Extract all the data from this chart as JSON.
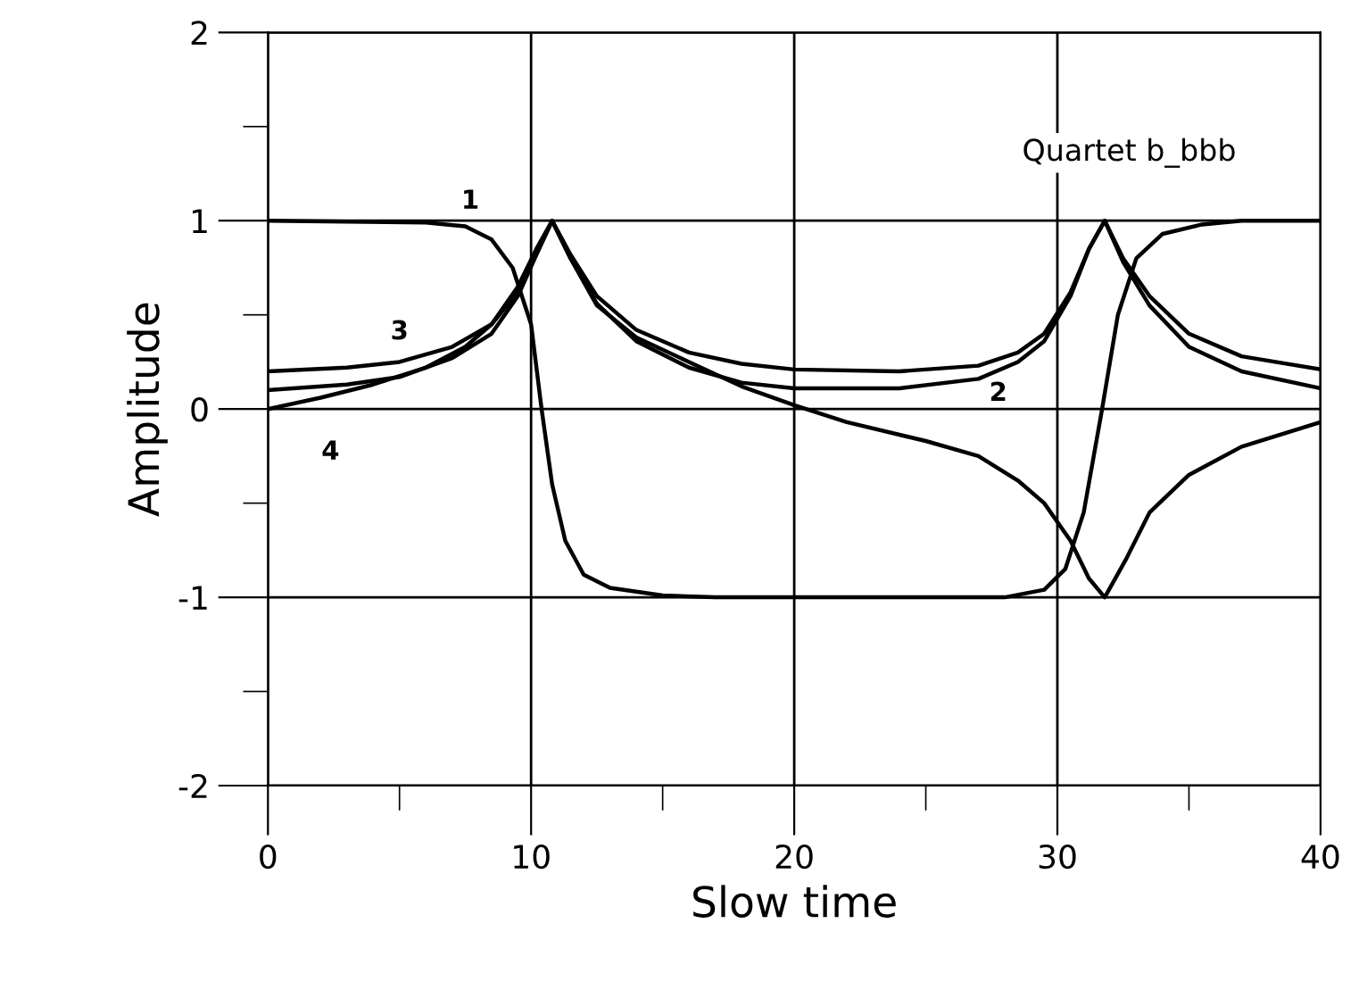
{
  "chart_data": {
    "type": "line",
    "xlabel": "Slow time",
    "ylabel": "Amplitude",
    "xlim": [
      0,
      40
    ],
    "ylim": [
      -2,
      2
    ],
    "xticks": [
      0,
      {
        "value": 5,
        "label": null
      },
      10,
      {
        "value": 15,
        "label": null
      },
      20,
      {
        "value": 25,
        "label": null
      },
      30,
      {
        "value": 35,
        "label": null
      },
      40
    ],
    "yticks": [
      -2,
      {
        "value": -1.5,
        "label": null
      },
      -1,
      {
        "value": -0.5,
        "label": null
      },
      0,
      {
        "value": 0.5,
        "label": null
      },
      1,
      {
        "value": 1.5,
        "label": null
      },
      2
    ],
    "grid": true,
    "legend": false,
    "marker": "none",
    "line_style": "solid",
    "annotations": [
      "Quartet b_bbb"
    ],
    "series": [
      {
        "name": "1",
        "color": "#000000",
        "x": [
          0,
          6,
          7.5,
          8.5,
          9.3,
          10,
          10.4,
          10.8,
          11.3,
          12,
          13,
          15,
          17,
          28,
          29.5,
          30.3,
          31,
          31.7,
          32.3,
          33,
          34,
          35.5,
          37,
          40
        ],
        "values": [
          1,
          0.99,
          0.97,
          0.9,
          0.75,
          0.45,
          0,
          -0.4,
          -0.7,
          -0.88,
          -0.95,
          -0.99,
          -1,
          -1,
          -0.96,
          -0.85,
          -0.55,
          0,
          0.5,
          0.8,
          0.93,
          0.98,
          1,
          1
        ]
      },
      {
        "name": "2",
        "color": "#000000",
        "x": [
          0,
          3,
          5,
          7,
          8.5,
          9.5,
          10.3,
          10.8,
          11.5,
          12.5,
          14,
          16,
          18,
          20,
          24,
          27,
          28.5,
          29.5,
          30.5,
          31.2,
          31.8,
          32.5,
          33.5,
          35,
          37,
          40
        ],
        "values": [
          0.1,
          0.13,
          0.17,
          0.27,
          0.4,
          0.6,
          0.85,
          1,
          0.8,
          0.56,
          0.36,
          0.22,
          0.14,
          0.11,
          0.11,
          0.16,
          0.25,
          0.36,
          0.6,
          0.85,
          1,
          0.78,
          0.55,
          0.33,
          0.2,
          0.11
        ]
      },
      {
        "name": "3",
        "color": "#000000",
        "x": [
          0,
          3,
          5,
          7,
          8.5,
          9.5,
          10.3,
          10.8,
          11.5,
          12.5,
          14,
          16,
          18,
          20,
          24,
          27,
          28.5,
          29.5,
          30.5,
          31.2,
          31.8,
          32.5,
          33.5,
          35,
          37,
          40
        ],
        "values": [
          0.2,
          0.22,
          0.25,
          0.33,
          0.45,
          0.62,
          0.85,
          1,
          0.82,
          0.6,
          0.42,
          0.3,
          0.24,
          0.21,
          0.2,
          0.23,
          0.3,
          0.4,
          0.62,
          0.85,
          1,
          0.8,
          0.6,
          0.4,
          0.28,
          0.21
        ]
      },
      {
        "name": "4",
        "color": "#000000",
        "x": [
          0,
          2,
          4,
          6,
          7.5,
          8.5,
          9.5,
          10.2,
          10.8,
          11.5,
          12.5,
          14,
          16,
          18,
          20,
          22,
          25,
          27,
          28.5,
          29.5,
          30.5,
          31.2,
          31.8,
          32.6,
          33.5,
          35,
          37,
          40
        ],
        "values": [
          0,
          0.06,
          0.13,
          0.22,
          0.33,
          0.45,
          0.65,
          0.85,
          1,
          0.8,
          0.55,
          0.38,
          0.25,
          0.12,
          0.02,
          -0.07,
          -0.17,
          -0.25,
          -0.38,
          -0.5,
          -0.7,
          -0.9,
          -1,
          -0.8,
          -0.55,
          -0.35,
          -0.2,
          -0.07
        ]
      }
    ]
  }
}
